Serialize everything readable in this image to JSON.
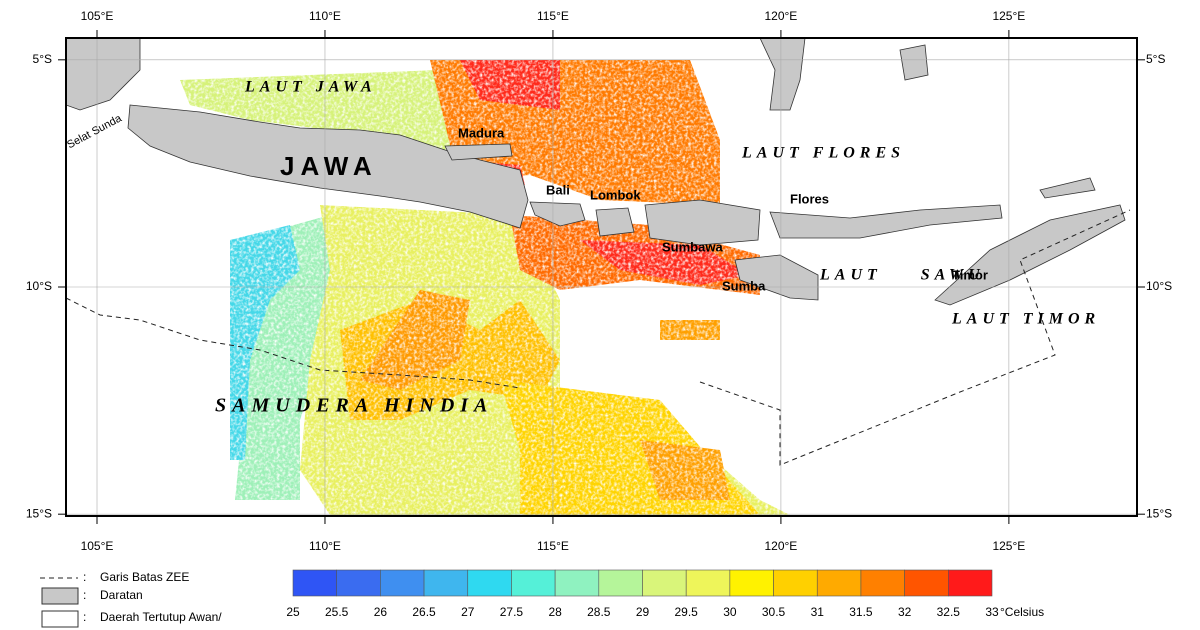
{
  "map": {
    "xlim": [
      104.32,
      127.81
    ],
    "ylim": [
      -15.04,
      -4.52
    ],
    "lon_ticks": [
      {
        "value": 105,
        "label": "105°E"
      },
      {
        "value": 110,
        "label": "110°E"
      },
      {
        "value": 115,
        "label": "115°E"
      },
      {
        "value": 120,
        "label": "120°E"
      },
      {
        "value": 125,
        "label": "125°E"
      }
    ],
    "lat_ticks": [
      {
        "value": -5,
        "label": "5°S"
      },
      {
        "value": -10,
        "label": "10°S"
      },
      {
        "value": -15,
        "label": "15°S"
      }
    ],
    "place_labels": [
      "LAUT JAWA",
      "JAWA",
      "Selat Sunda",
      "Madura",
      "Bali",
      "Lombok",
      "LAUT FLORES",
      "Flores",
      "Sumbawa",
      "Sumba",
      "LAUT SAWU",
      "Timor",
      "LAUT TIMOR",
      "SAMUDERA HINDIA"
    ]
  },
  "legend": {
    "items": [
      "Garis Batas ZEE",
      "Daratan",
      "Daerah Tertutup Awan/"
    ]
  },
  "colorbar": {
    "ticks": [
      25,
      25.5,
      26,
      26.5,
      27,
      27.5,
      28,
      28.5,
      29,
      29.5,
      30,
      30.5,
      31,
      31.5,
      32,
      32.5,
      33
    ],
    "colors": [
      "#2f55f5",
      "#3a6cf0",
      "#3f8ff0",
      "#3fb6ee",
      "#2fd9f0",
      "#55f0d8",
      "#8ff2c0",
      "#b5f59a",
      "#d9f57a",
      "#eef55a",
      "#fff200",
      "#ffd000",
      "#ffaa00",
      "#ff8000",
      "#ff5500",
      "#ff1a1a"
    ],
    "unit": "°Celsius"
  }
}
